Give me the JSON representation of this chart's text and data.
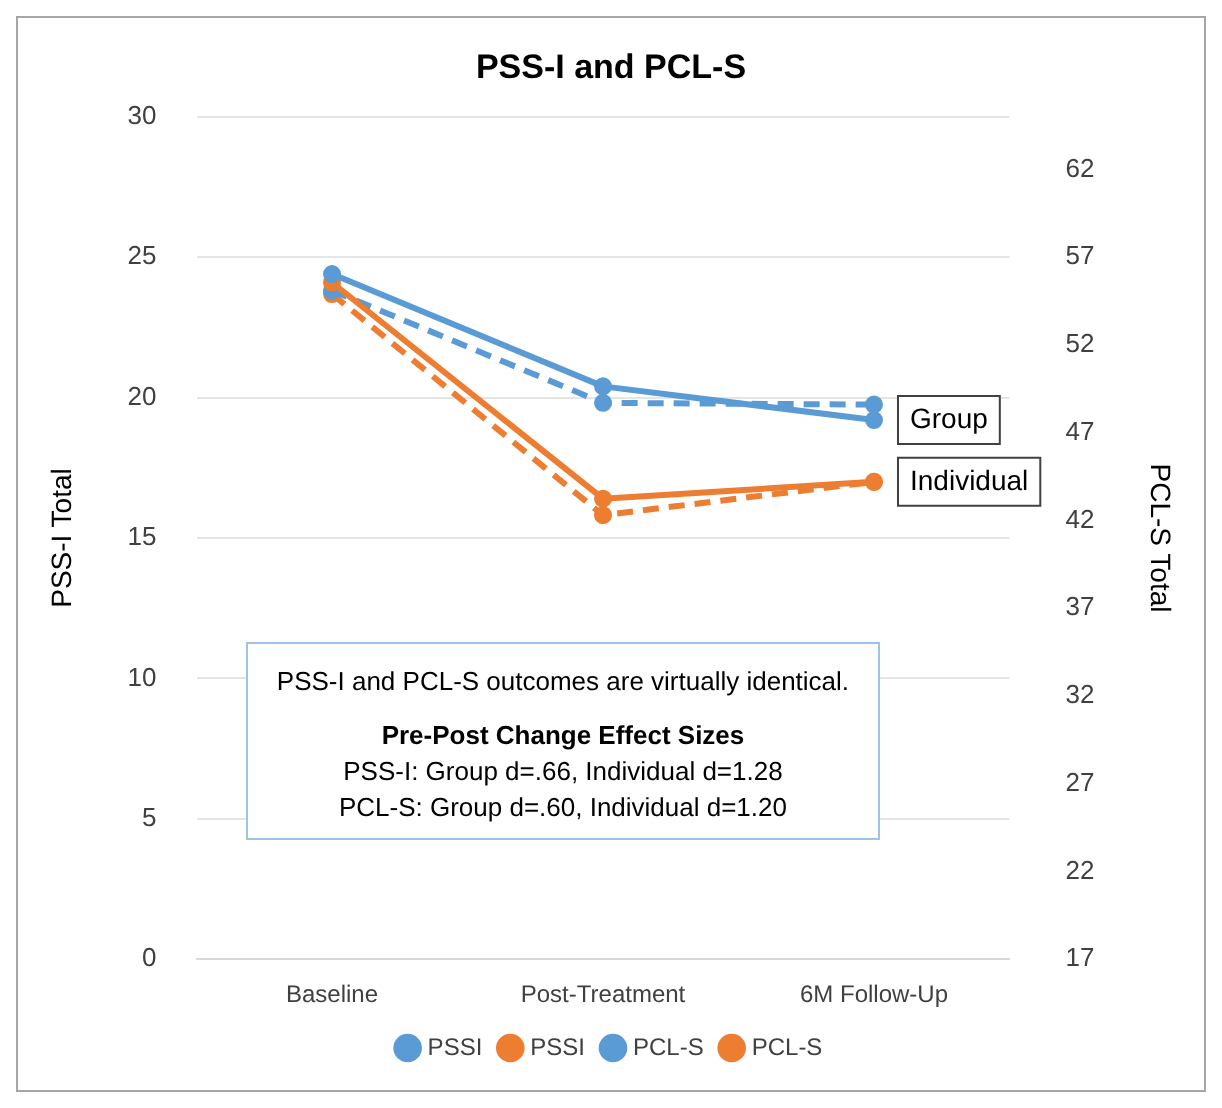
{
  "chart_data": {
    "type": "line",
    "title": "PSS-I and PCL-S",
    "ylabel": "PSS-I Total",
    "y2label": "PCL-S Total",
    "categories": [
      "Baseline",
      "Post-Treatment",
      "6M Follow-Up"
    ],
    "series": [
      {
        "name": "PSSI",
        "color": "#5b9bd5",
        "values": [
          24.4,
          20.4,
          19.2
        ]
      },
      {
        "name": "PSSI",
        "color": "#ed7d31",
        "values": [
          24.1,
          16.4,
          17.0
        ]
      },
      {
        "name": "PCL-S",
        "color": "#5b9bd5",
        "values": [
          55.1,
          48.7,
          48.6
        ],
        "axis": "y2",
        "line_style": "dashed"
      },
      {
        "name": "PCL-S",
        "color": "#ed7d31",
        "values": [
          54.9,
          42.3,
          44.2
        ],
        "axis": "y2",
        "line_style": "dashed"
      }
    ],
    "ylim": [
      0,
      30
    ],
    "yticks": [
      0,
      5,
      10,
      15,
      20,
      25,
      30
    ],
    "y2lim": [
      17,
      65
    ],
    "y2ticks": [
      17,
      22,
      27,
      32,
      37,
      42,
      47,
      52,
      57,
      62
    ],
    "grid": "y",
    "legend": "bottom",
    "marker": "circle",
    "annotations": [
      "Group",
      "Individual",
      "PSS-I and PCL-S outcomes are virtually identical.",
      "Pre-Post Change Effect Sizes",
      "PSS-I: Group d=.66, Individual d=1.28",
      "PCL-S: Group d=.60, Individual d=1.20"
    ]
  }
}
